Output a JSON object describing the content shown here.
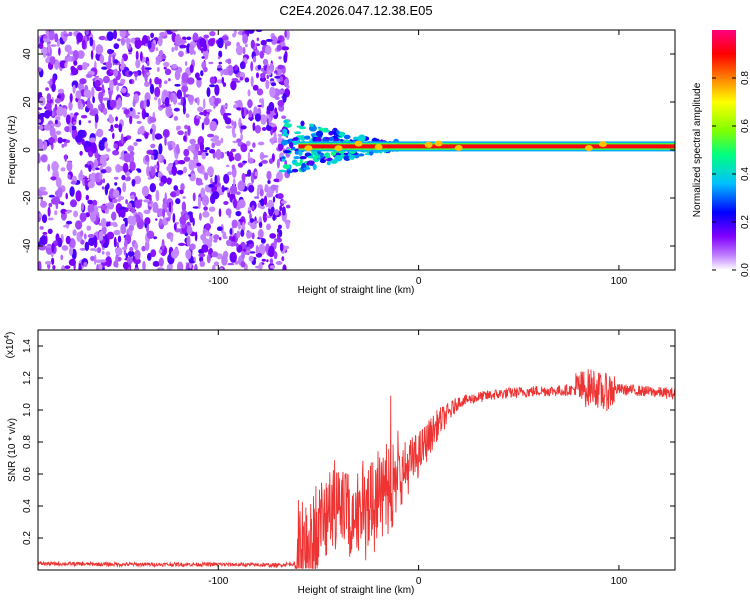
{
  "title": "C2E4.2026.047.12.38.E05",
  "chart_data": [
    {
      "type": "heatmap",
      "name": "spectrogram",
      "xlabel": "Height of straight line (km)",
      "ylabel": "Frequency (Hz)",
      "xlim": [
        -190,
        128
      ],
      "ylim": [
        -50,
        50
      ],
      "xticks": [
        -100,
        0,
        100
      ],
      "xtick_labels": [
        "-100",
        "0",
        "100"
      ],
      "yticks": [
        -40,
        -20,
        0,
        20,
        40
      ],
      "ytick_labels": [
        "-40",
        "-20",
        "0",
        "20",
        "40"
      ],
      "noise_region_end_km": -65,
      "carrier_frequency_hz": 1.5,
      "carrier_start_km": -60,
      "carrier_amplitude": 0.9,
      "colorbar": {
        "label": "Normalized spectral amplitude",
        "range": [
          0,
          1
        ],
        "ticks": [
          0.0,
          0.2,
          0.4,
          0.6,
          0.8
        ],
        "tick_labels": [
          "0.0",
          "0.2",
          "0.4",
          "0.6",
          "0.8"
        ],
        "colors": [
          "#ffffff",
          "#8000ff",
          "#0000ff",
          "#00c0ff",
          "#00ff80",
          "#80ff00",
          "#ffff00",
          "#ff8000",
          "#ff0000",
          "#ff0080"
        ]
      }
    },
    {
      "type": "line",
      "name": "snr",
      "xlabel": "Height of straight line (km)",
      "ylabel": "SNR (10 * v/v)",
      "scale_label": "(x10",
      "scale_exp": "4",
      "scale_close": ")",
      "xlim": [
        -190,
        128
      ],
      "ylim": [
        0,
        1.5
      ],
      "xticks": [
        -100,
        0,
        100
      ],
      "xtick_labels": [
        "-100",
        "0",
        "100"
      ],
      "yticks": [
        0.2,
        0.4,
        0.6,
        0.8,
        1.0,
        1.2,
        1.4
      ],
      "ytick_labels": [
        "0.2",
        "0.4",
        "0.6",
        "0.8",
        "1.0",
        "1.2",
        "1.4"
      ],
      "color": "#ee3333",
      "x": [
        -190,
        -150,
        -100,
        -70,
        -62,
        -57,
        -53,
        -50,
        -47,
        -44,
        -41,
        -38,
        -35,
        -30,
        -25,
        -20,
        -15,
        -10,
        -5,
        0,
        5,
        10,
        15,
        20,
        30,
        40,
        50,
        60,
        70,
        80,
        85,
        88,
        90,
        92,
        95,
        100,
        110,
        120,
        128
      ],
      "values": [
        0.04,
        0.035,
        0.035,
        0.03,
        0.04,
        0.1,
        0.2,
        0.28,
        0.32,
        0.38,
        0.36,
        0.4,
        0.35,
        0.38,
        0.42,
        0.45,
        0.5,
        0.58,
        0.65,
        0.72,
        0.82,
        0.92,
        0.98,
        1.05,
        1.08,
        1.1,
        1.11,
        1.12,
        1.12,
        1.13,
        1.14,
        1.15,
        1.12,
        1.1,
        1.12,
        1.13,
        1.12,
        1.11,
        1.1
      ]
    }
  ]
}
